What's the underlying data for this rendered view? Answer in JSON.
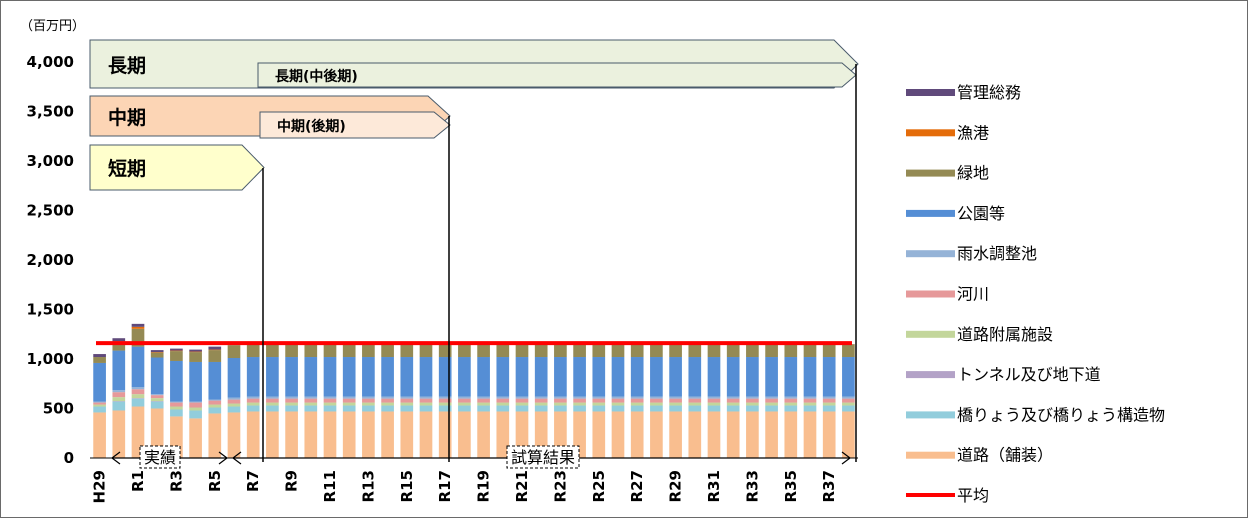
{
  "chart_data": {
    "type": "bar",
    "stacked": true,
    "unit_label": "（百万円）",
    "y_ticks": [
      "4,000",
      "3,500",
      "3,000",
      "2,500",
      "2,000",
      "1,500",
      "1,000",
      "500",
      "0"
    ],
    "ylim": [
      0,
      4000
    ],
    "grid": false,
    "legend_position": "right",
    "x_tick_labels": [
      "H29",
      "R1",
      "R3",
      "R5",
      "R7",
      "R9",
      "R11",
      "R13",
      "R15",
      "R17",
      "R19",
      "R21",
      "R23",
      "R25",
      "R27",
      "R29",
      "R31",
      "R33",
      "R35",
      "R37"
    ],
    "num_bars": 40,
    "series": [
      {
        "name": "道路（舗装）",
        "color": "#f9be8f",
        "values": [
          460,
          480,
          520,
          500,
          420,
          400,
          450,
          460,
          470,
          470,
          470,
          470,
          470,
          470,
          470,
          470,
          470,
          470,
          470,
          470,
          470,
          470,
          470,
          470,
          470,
          470,
          470,
          470,
          470,
          470,
          470,
          470,
          470,
          470,
          470,
          470,
          470,
          470,
          470,
          470
        ]
      },
      {
        "name": "橋りょう及び橋りょう構造物",
        "color": "#92cddc",
        "values": [
          60,
          90,
          80,
          70,
          70,
          80,
          60,
          60,
          60,
          60,
          60,
          60,
          60,
          60,
          60,
          60,
          60,
          60,
          60,
          60,
          60,
          60,
          60,
          60,
          60,
          60,
          60,
          60,
          60,
          60,
          60,
          60,
          60,
          60,
          60,
          60,
          60,
          60,
          60,
          60
        ]
      },
      {
        "name": "トンネル及び地下道",
        "color": "#b3a2c7",
        "values": [
          0,
          5,
          5,
          5,
          0,
          0,
          0,
          0,
          0,
          0,
          0,
          0,
          0,
          0,
          0,
          0,
          0,
          0,
          0,
          0,
          0,
          0,
          0,
          0,
          0,
          0,
          0,
          0,
          0,
          0,
          0,
          0,
          0,
          0,
          0,
          0,
          0,
          0,
          0,
          0
        ]
      },
      {
        "name": "道路附属施設",
        "color": "#c3d69b",
        "values": [
          20,
          40,
          40,
          30,
          30,
          30,
          30,
          30,
          30,
          30,
          30,
          30,
          30,
          30,
          30,
          30,
          30,
          30,
          30,
          30,
          30,
          30,
          30,
          30,
          30,
          30,
          30,
          30,
          30,
          30,
          30,
          30,
          30,
          30,
          30,
          30,
          30,
          30,
          30,
          30
        ]
      },
      {
        "name": "河川",
        "color": "#e6999a",
        "values": [
          20,
          50,
          50,
          30,
          40,
          50,
          40,
          40,
          40,
          40,
          40,
          40,
          40,
          40,
          40,
          40,
          40,
          40,
          40,
          40,
          40,
          40,
          40,
          40,
          40,
          40,
          40,
          40,
          40,
          40,
          40,
          40,
          40,
          40,
          40,
          40,
          40,
          40,
          40,
          40
        ]
      },
      {
        "name": "雨水調整池",
        "color": "#95b3d7",
        "values": [
          10,
          20,
          20,
          10,
          10,
          10,
          10,
          20,
          20,
          20,
          20,
          20,
          20,
          20,
          20,
          20,
          20,
          20,
          20,
          20,
          20,
          20,
          20,
          20,
          20,
          20,
          20,
          20,
          20,
          20,
          20,
          20,
          20,
          20,
          20,
          20,
          20,
          20,
          20,
          20
        ]
      },
      {
        "name": "公園等",
        "color": "#558ed5",
        "values": [
          390,
          400,
          410,
          370,
          410,
          400,
          380,
          400,
          400,
          400,
          400,
          400,
          400,
          400,
          400,
          400,
          400,
          400,
          400,
          400,
          400,
          400,
          400,
          400,
          400,
          400,
          400,
          400,
          400,
          400,
          400,
          400,
          400,
          400,
          400,
          400,
          400,
          400,
          400,
          400
        ]
      },
      {
        "name": "緑地",
        "color": "#948a54",
        "values": [
          60,
          90,
          180,
          50,
          100,
          100,
          120,
          130,
          130,
          130,
          130,
          130,
          130,
          130,
          130,
          130,
          130,
          130,
          130,
          130,
          130,
          130,
          130,
          130,
          130,
          130,
          130,
          130,
          130,
          130,
          130,
          130,
          130,
          130,
          130,
          130,
          130,
          130,
          130,
          130
        ]
      },
      {
        "name": "漁港",
        "color": "#e46c0a",
        "values": [
          0,
          5,
          20,
          5,
          5,
          5,
          5,
          0,
          0,
          0,
          0,
          0,
          0,
          0,
          0,
          0,
          0,
          0,
          0,
          0,
          0,
          0,
          0,
          0,
          0,
          0,
          0,
          0,
          0,
          0,
          0,
          0,
          0,
          0,
          0,
          0,
          0,
          0,
          0,
          0
        ]
      },
      {
        "name": "管理総務",
        "color": "#604a7b",
        "values": [
          30,
          30,
          30,
          20,
          20,
          20,
          30,
          0,
          0,
          0,
          0,
          0,
          0,
          0,
          0,
          0,
          0,
          0,
          0,
          0,
          0,
          0,
          0,
          0,
          0,
          0,
          0,
          0,
          0,
          0,
          0,
          0,
          0,
          0,
          0,
          0,
          0,
          0,
          0,
          0
        ]
      }
    ],
    "average": {
      "name": "平均",
      "color": "#ff0000",
      "value": 1160
    },
    "periods": [
      {
        "label": "長期",
        "color": "#ebf1de"
      },
      {
        "label": "長期(中後期)",
        "color": "#ebf1de"
      },
      {
        "label": "中期",
        "color": "#fcd5b5"
      },
      {
        "label": "中期(後期)",
        "color": "#fde9d9"
      },
      {
        "label": "短期",
        "color": "#ffffcc"
      }
    ],
    "brackets": [
      {
        "label": "実績"
      },
      {
        "label": "試算結果"
      }
    ]
  }
}
